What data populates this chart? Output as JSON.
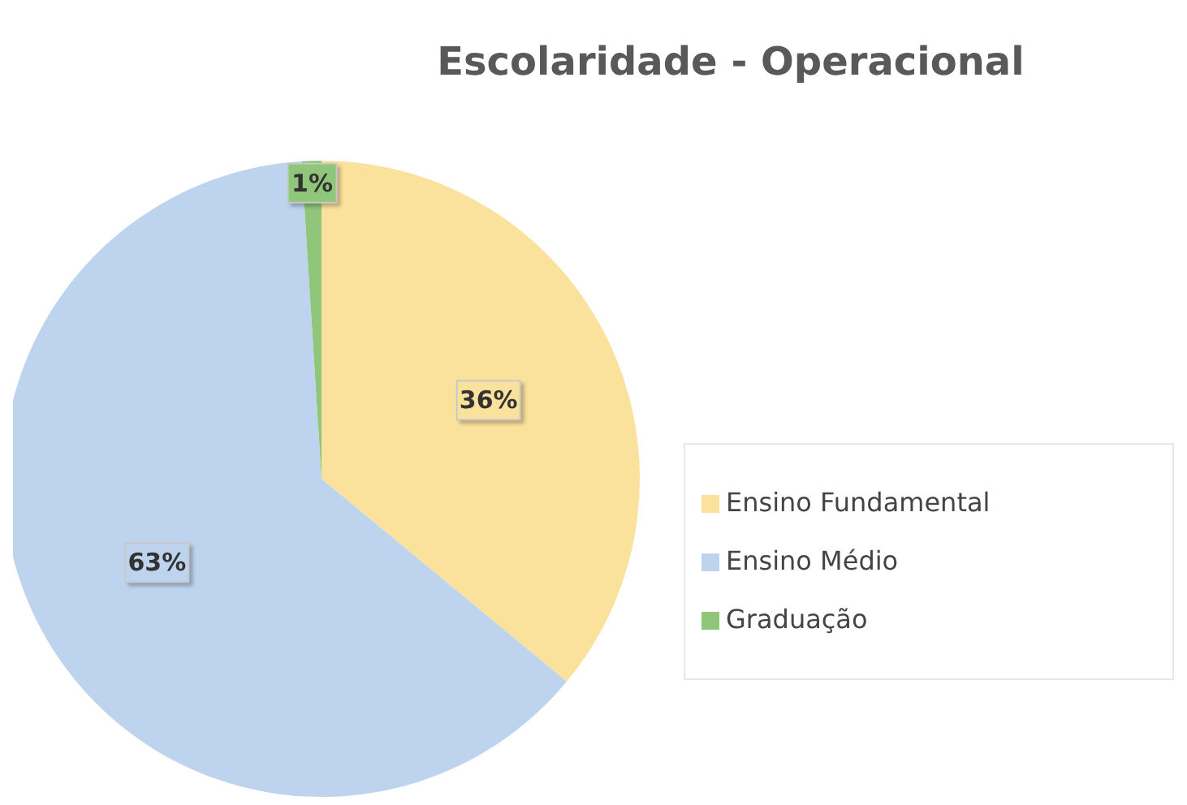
{
  "chart_data": {
    "type": "pie",
    "title": "Escolaridade - Operacional",
    "categories": [
      "Ensino Fundamental",
      "Ensino Médio",
      "Graduação"
    ],
    "values": [
      36,
      63,
      1
    ],
    "value_labels": [
      "36%",
      "63%",
      "1%"
    ],
    "colors": [
      "#fbe29c",
      "#bed4ee",
      "#8fc67a"
    ],
    "legend": "right"
  }
}
